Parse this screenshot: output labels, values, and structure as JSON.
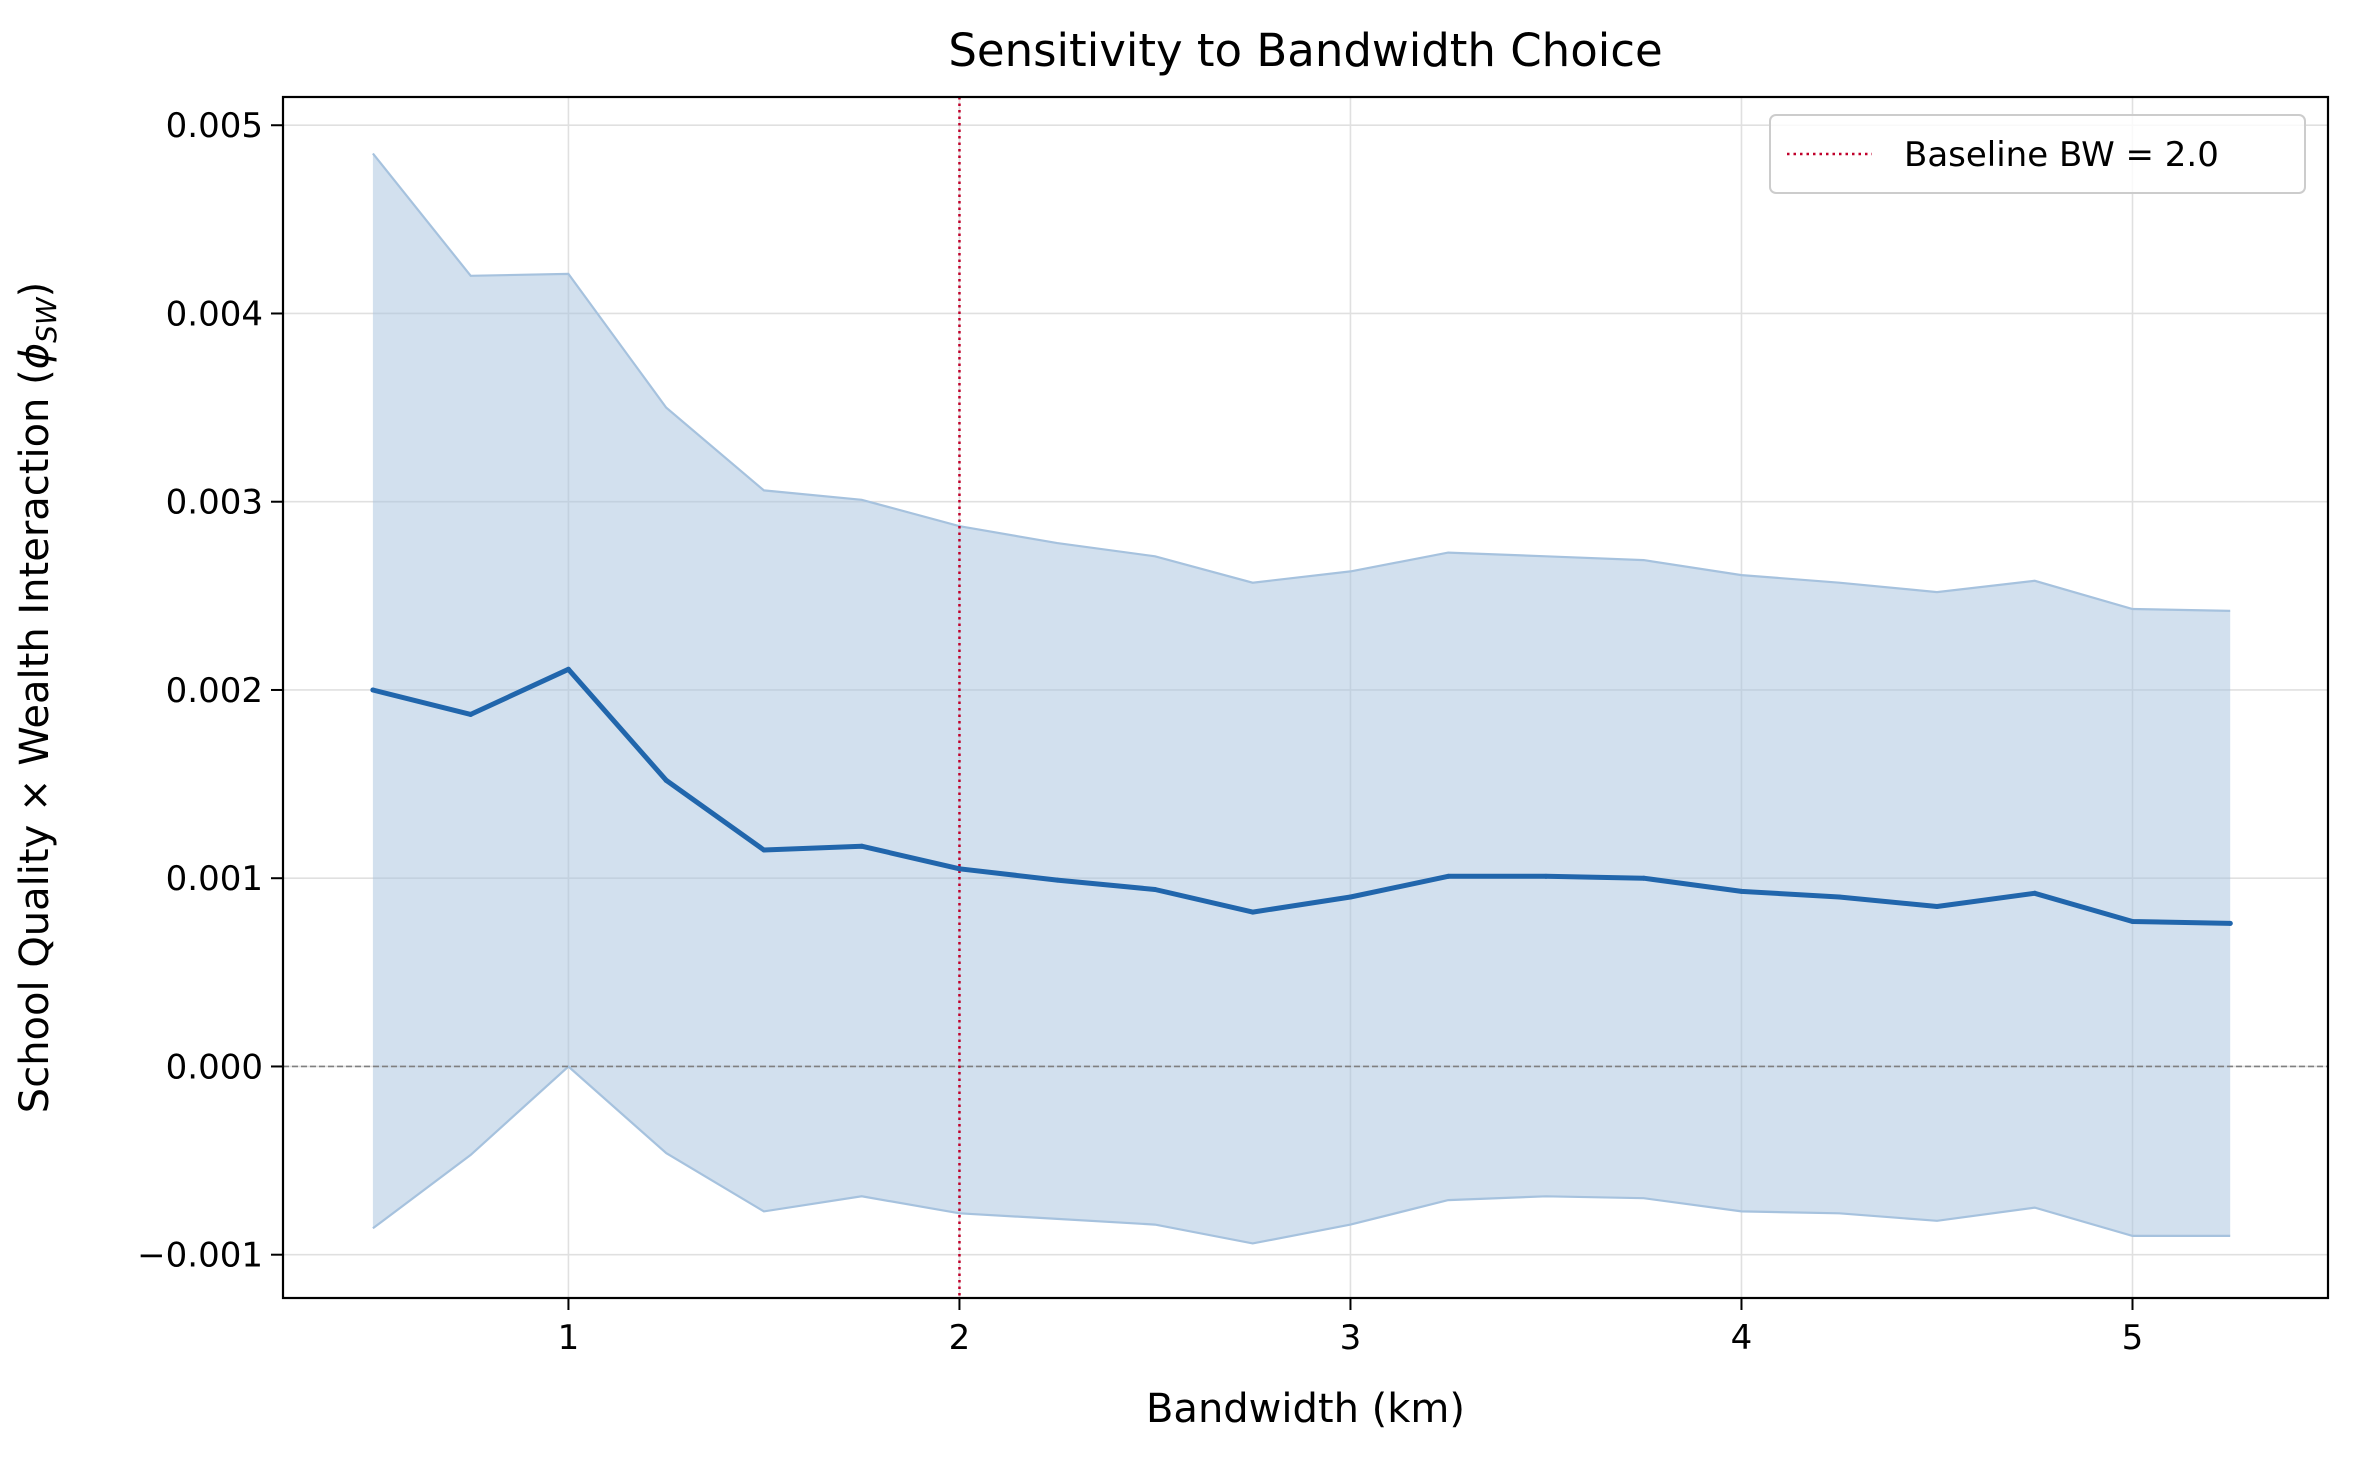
{
  "chart_data": {
    "type": "line",
    "title": "Sensitivity to Bandwidth Choice",
    "xlabel": "Bandwidth (km)",
    "ylabel": "School Quality × Wealth Interaction (",
    "ylabel_symbol": "ϕ",
    "ylabel_subscript": "SW",
    "ylabel_close": ")",
    "xlim": [
      0.27,
      5.5
    ],
    "ylim": [
      -0.00123,
      0.00515
    ],
    "x_ticks": [
      1,
      2,
      3,
      4,
      5
    ],
    "x_tick_labels": [
      "1",
      "2",
      "3",
      "4",
      "5"
    ],
    "y_ticks": [
      -0.001,
      0.0,
      0.001,
      0.002,
      0.003,
      0.004,
      0.005
    ],
    "y_tick_labels": [
      "−0.001",
      "0.000",
      "0.001",
      "0.002",
      "0.003",
      "0.004",
      "0.005"
    ],
    "grid": true,
    "legend_position": "top-right",
    "colors": {
      "line": "#2166ac",
      "band": "#a6c2de",
      "band_edge": "#a6c2de",
      "baseline": "#c0002a",
      "zero_line": "#808080",
      "grid": "#e0e0e0"
    },
    "x": [
      0.5,
      0.75,
      1.0,
      1.25,
      1.5,
      1.75,
      2.0,
      2.25,
      2.5,
      2.75,
      3.0,
      3.25,
      3.5,
      3.75,
      4.0,
      4.25,
      4.5,
      4.75,
      5.0,
      5.25
    ],
    "series": [
      {
        "values": [
          0.002,
          0.00187,
          0.00211,
          0.00152,
          0.00115,
          0.00117,
          0.00105,
          0.00099,
          0.00094,
          0.00082,
          0.0009,
          0.00101,
          0.00101,
          0.001,
          0.00093,
          0.0009,
          0.00085,
          0.00092,
          0.00077,
          0.00076
        ],
        "lower": [
          -0.00086,
          -0.00047,
          0.0,
          -0.00046,
          -0.00077,
          -0.00069,
          -0.00078,
          -0.00081,
          -0.00084,
          -0.00094,
          -0.00084,
          -0.00071,
          -0.00069,
          -0.0007,
          -0.00077,
          -0.00078,
          -0.00082,
          -0.00075,
          -0.0009,
          -0.0009
        ],
        "upper": [
          0.00485,
          0.0042,
          0.00421,
          0.0035,
          0.00306,
          0.00301,
          0.00287,
          0.00278,
          0.00271,
          0.00257,
          0.00263,
          0.00273,
          0.00271,
          0.00269,
          0.00261,
          0.00257,
          0.00252,
          0.00258,
          0.00243,
          0.00242
        ]
      }
    ],
    "baseline": {
      "x": 2.0,
      "label": "Baseline BW = 2.0"
    },
    "zero_line": 0.0
  }
}
